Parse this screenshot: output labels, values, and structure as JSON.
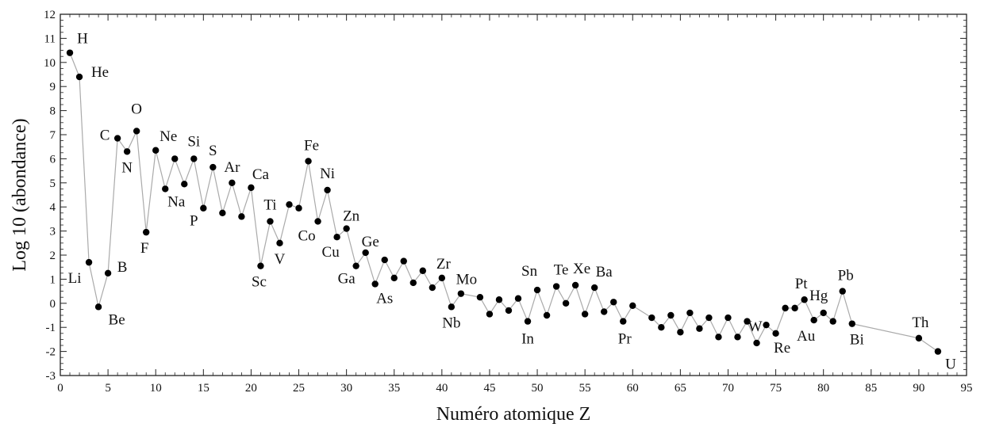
{
  "chart_data": {
    "type": "scatter",
    "title": "",
    "xlabel": "Numéro atomique Z",
    "ylabel": "Log 10 (abondance)",
    "xlim": [
      0,
      95
    ],
    "ylim": [
      -3,
      12
    ],
    "xticks": [
      0,
      5,
      10,
      15,
      20,
      25,
      30,
      35,
      40,
      45,
      50,
      55,
      60,
      65,
      70,
      75,
      80,
      85,
      90,
      95
    ],
    "yticks": [
      -3,
      -2,
      -1,
      0,
      1,
      2,
      3,
      4,
      5,
      6,
      7,
      8,
      9,
      10,
      11,
      12
    ],
    "grid": false,
    "line_color": "#aaaaaa",
    "marker_color": "#000000",
    "points": [
      [
        1,
        10.4
      ],
      [
        2,
        9.4
      ],
      [
        3,
        1.7
      ],
      [
        4,
        -0.15
      ],
      [
        5,
        1.25
      ],
      [
        6,
        6.85
      ],
      [
        7,
        6.3
      ],
      [
        8,
        7.15
      ],
      [
        9,
        2.95
      ],
      [
        10,
        6.35
      ],
      [
        11,
        4.75
      ],
      [
        12,
        6.0
      ],
      [
        13,
        4.95
      ],
      [
        14,
        6.0
      ],
      [
        15,
        3.95
      ],
      [
        16,
        5.65
      ],
      [
        17,
        3.75
      ],
      [
        18,
        5.0
      ],
      [
        19,
        3.6
      ],
      [
        20,
        4.8
      ],
      [
        21,
        1.55
      ],
      [
        22,
        3.4
      ],
      [
        23,
        2.5
      ],
      [
        24,
        4.1
      ],
      [
        25,
        3.95
      ],
      [
        26,
        5.9
      ],
      [
        27,
        3.4
      ],
      [
        28,
        4.7
      ],
      [
        29,
        2.75
      ],
      [
        30,
        3.1
      ],
      [
        31,
        1.55
      ],
      [
        32,
        2.1
      ],
      [
        33,
        0.8
      ],
      [
        34,
        1.8
      ],
      [
        35,
        1.05
      ],
      [
        36,
        1.75
      ],
      [
        37,
        0.85
      ],
      [
        38,
        1.35
      ],
      [
        39,
        0.65
      ],
      [
        40,
        1.05
      ],
      [
        41,
        -0.15
      ],
      [
        42,
        0.4
      ],
      [
        44,
        0.25
      ],
      [
        45,
        -0.45
      ],
      [
        46,
        0.15
      ],
      [
        47,
        -0.3
      ],
      [
        48,
        0.2
      ],
      [
        49,
        -0.75
      ],
      [
        50,
        0.55
      ],
      [
        51,
        -0.5
      ],
      [
        52,
        0.7
      ],
      [
        53,
        0.0
      ],
      [
        54,
        0.75
      ],
      [
        55,
        -0.45
      ],
      [
        56,
        0.65
      ],
      [
        57,
        -0.35
      ],
      [
        58,
        0.05
      ],
      [
        59,
        -0.75
      ],
      [
        60,
        -0.1
      ],
      [
        62,
        -0.6
      ],
      [
        63,
        -1.0
      ],
      [
        64,
        -0.5
      ],
      [
        65,
        -1.2
      ],
      [
        66,
        -0.4
      ],
      [
        67,
        -1.05
      ],
      [
        68,
        -0.6
      ],
      [
        69,
        -1.4
      ],
      [
        70,
        -0.6
      ],
      [
        71,
        -1.4
      ],
      [
        72,
        -0.75
      ],
      [
        73,
        -1.65
      ],
      [
        74,
        -0.9
      ],
      [
        75,
        -1.25
      ],
      [
        76,
        -0.2
      ],
      [
        77,
        -0.2
      ],
      [
        78,
        0.15
      ],
      [
        79,
        -0.7
      ],
      [
        80,
        -0.4
      ],
      [
        81,
        -0.75
      ],
      [
        82,
        0.5
      ],
      [
        83,
        -0.85
      ],
      [
        90,
        -1.45
      ],
      [
        92,
        -2.0
      ]
    ],
    "labels": [
      {
        "text": "H",
        "z": 1
      },
      {
        "text": "He",
        "z": 2
      },
      {
        "text": "Li",
        "z": 3
      },
      {
        "text": "Be",
        "z": 4
      },
      {
        "text": "B",
        "z": 5
      },
      {
        "text": "C",
        "z": 6
      },
      {
        "text": "N",
        "z": 7
      },
      {
        "text": "O",
        "z": 8
      },
      {
        "text": "F",
        "z": 9
      },
      {
        "text": "Ne",
        "z": 10
      },
      {
        "text": "Na",
        "z": 11
      },
      {
        "text": "Si",
        "z": 14
      },
      {
        "text": "P",
        "z": 15
      },
      {
        "text": "S",
        "z": 16
      },
      {
        "text": "Ar",
        "z": 18
      },
      {
        "text": "Ca",
        "z": 20
      },
      {
        "text": "Sc",
        "z": 21
      },
      {
        "text": "Ti",
        "z": 22
      },
      {
        "text": "V",
        "z": 23
      },
      {
        "text": "Fe",
        "z": 26
      },
      {
        "text": "Co",
        "z": 27
      },
      {
        "text": "Ni",
        "z": 28
      },
      {
        "text": "Cu",
        "z": 29
      },
      {
        "text": "Zn",
        "z": 30
      },
      {
        "text": "Ga",
        "z": 31
      },
      {
        "text": "Ge",
        "z": 32
      },
      {
        "text": "As",
        "z": 33
      },
      {
        "text": "Zr",
        "z": 40
      },
      {
        "text": "Nb",
        "z": 41
      },
      {
        "text": "Mo",
        "z": 42
      },
      {
        "text": "Sn",
        "z": 50
      },
      {
        "text": "In",
        "z": 49
      },
      {
        "text": "Te",
        "z": 52
      },
      {
        "text": "Xe",
        "z": 54
      },
      {
        "text": "Ba",
        "z": 56
      },
      {
        "text": "Pr",
        "z": 59
      },
      {
        "text": "W",
        "z": 74
      },
      {
        "text": "Re",
        "z": 75
      },
      {
        "text": "Pt",
        "z": 78
      },
      {
        "text": "Au",
        "z": 79
      },
      {
        "text": "Hg",
        "z": 80
      },
      {
        "text": "Pb",
        "z": 82
      },
      {
        "text": "Bi",
        "z": 83
      },
      {
        "text": "Th",
        "z": 90
      },
      {
        "text": "U",
        "z": 92
      }
    ]
  }
}
